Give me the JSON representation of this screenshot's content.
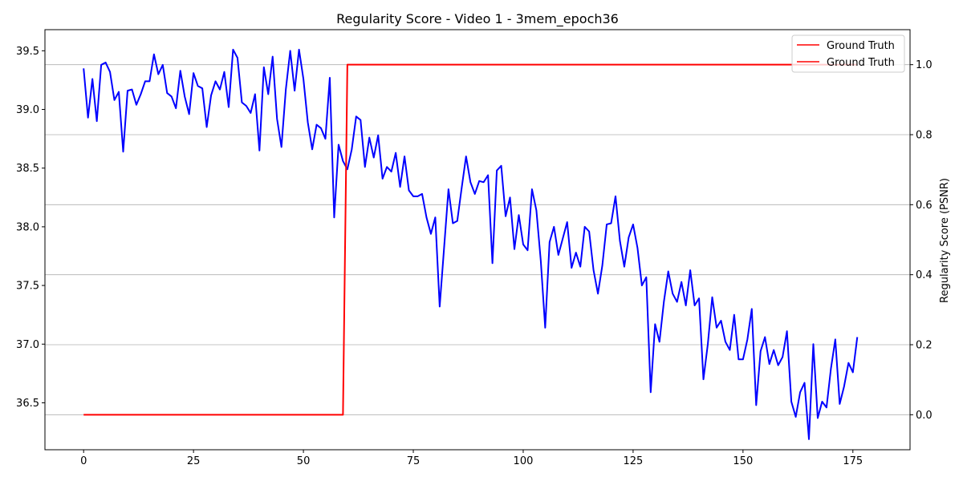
{
  "chart_data": {
    "type": "line",
    "title": "Regularity Score - Video 1 - 3mem_epoch36",
    "xlabel": "",
    "ylabel_left": "",
    "ylabel_right": "Regularity Score (PSNR)",
    "xlim": [
      -8.8,
      188
    ],
    "ylim_left": [
      36.1,
      39.68
    ],
    "ylim_right": [
      -0.1,
      1.1
    ],
    "xticks": [
      0,
      25,
      50,
      75,
      100,
      125,
      150,
      175
    ],
    "yticks_left": [
      36.5,
      37.0,
      37.5,
      38.0,
      38.5,
      39.0,
      39.5
    ],
    "yticks_left_labels": [
      "36.5",
      "37.0",
      "37.5",
      "38.0",
      "38.5",
      "39.0",
      "39.5"
    ],
    "yticks_right": [
      0.0,
      0.2,
      0.4,
      0.6,
      0.8,
      1.0
    ],
    "yticks_right_labels": [
      "0.0",
      "0.2",
      "0.4",
      "0.6",
      "0.8",
      "1.0"
    ],
    "grid": "right-axis horizontal",
    "legend_position": "top-right",
    "legend": [
      "Ground Truth",
      "Ground Truth"
    ],
    "series": [
      {
        "name": "Regularity Score",
        "axis": "left",
        "color": "#0000ff",
        "values": [
          39.35,
          38.93,
          39.26,
          38.9,
          39.38,
          39.4,
          39.32,
          39.08,
          39.15,
          38.64,
          39.16,
          39.17,
          39.04,
          39.13,
          39.24,
          39.24,
          39.47,
          39.3,
          39.38,
          39.14,
          39.11,
          39.01,
          39.33,
          39.11,
          38.96,
          39.31,
          39.2,
          39.18,
          38.85,
          39.12,
          39.24,
          39.17,
          39.32,
          39.02,
          39.51,
          39.44,
          39.06,
          39.03,
          38.97,
          39.13,
          38.65,
          39.36,
          39.13,
          39.45,
          38.92,
          38.68,
          39.17,
          39.5,
          39.16,
          39.51,
          39.26,
          38.89,
          38.66,
          38.87,
          38.84,
          38.75,
          39.27,
          38.08,
          38.7,
          38.56,
          38.49,
          38.66,
          38.94,
          38.91,
          38.51,
          38.76,
          38.59,
          38.78,
          38.41,
          38.51,
          38.47,
          38.63,
          38.34,
          38.6,
          38.31,
          38.26,
          38.26,
          38.28,
          38.08,
          37.94,
          38.08,
          37.32,
          37.82,
          38.32,
          38.03,
          38.05,
          38.33,
          38.6,
          38.38,
          38.28,
          38.39,
          38.38,
          38.44,
          37.69,
          38.48,
          38.52,
          38.09,
          38.25,
          37.81,
          38.1,
          37.85,
          37.8,
          38.32,
          38.14,
          37.71,
          37.14,
          37.87,
          38.0,
          37.76,
          37.9,
          38.04,
          37.65,
          37.78,
          37.66,
          38.0,
          37.96,
          37.63,
          37.43,
          37.67,
          38.02,
          38.03,
          38.26,
          37.88,
          37.66,
          37.91,
          38.02,
          37.82,
          37.5,
          37.57,
          36.59,
          37.17,
          37.02,
          37.36,
          37.62,
          37.43,
          37.36,
          37.53,
          37.33,
          37.63,
          37.33,
          37.39,
          36.7,
          37.0,
          37.4,
          37.14,
          37.2,
          37.02,
          36.95,
          37.25,
          36.87,
          36.87,
          37.04,
          37.3,
          36.48,
          36.94,
          37.06,
          36.83,
          36.95,
          36.82,
          36.89,
          37.11,
          36.51,
          36.38,
          36.59,
          36.67,
          36.19,
          37.0,
          36.37,
          36.51,
          36.46,
          36.79,
          37.04,
          36.49,
          36.64,
          36.84,
          36.76,
          37.06
        ]
      },
      {
        "name": "Ground Truth",
        "axis": "right",
        "color": "#ff0000",
        "x": [
          0,
          59,
          60,
          176
        ],
        "values": [
          0,
          0,
          1,
          1
        ]
      }
    ]
  }
}
